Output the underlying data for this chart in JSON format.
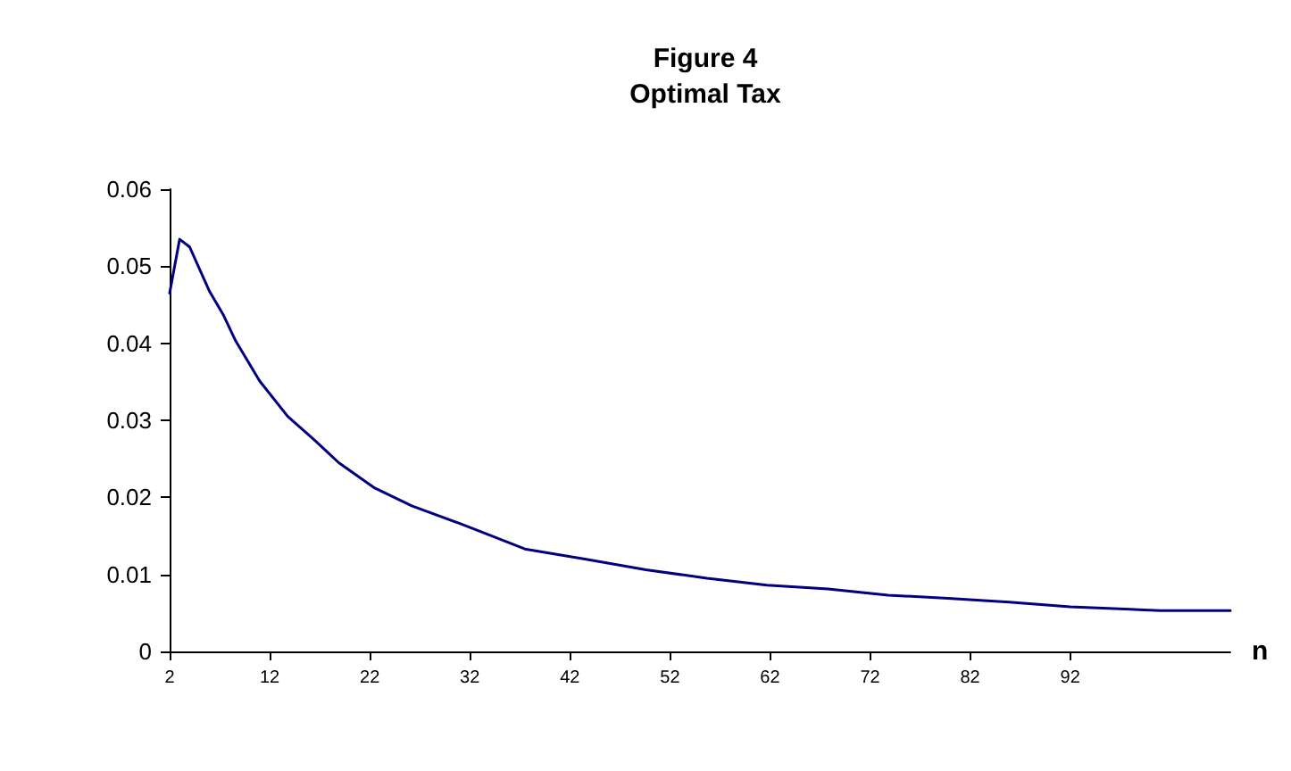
{
  "chart_data": {
    "type": "line",
    "title": "Figure 4\nOptimal Tax",
    "xlabel": "n",
    "x": [
      2,
      3,
      4,
      6,
      7.4,
      8.6,
      11,
      13.8,
      16.5,
      18.9,
      22.5,
      26.2,
      31,
      33.4,
      37.5,
      43.5,
      49.6,
      55.7,
      61.7,
      67.8,
      73.8,
      79.8,
      85.9,
      92,
      101,
      108
    ],
    "series": [
      {
        "color": "#000080",
        "values": [
          0.0465,
          0.0535,
          0.0525,
          0.0467,
          0.0436,
          0.0403,
          0.0351,
          0.0305,
          0.0274,
          0.0245,
          0.0212,
          0.0189,
          0.0166,
          0.0154,
          0.0133,
          0.012,
          0.0106,
          0.0095,
          0.0086,
          0.0081,
          0.0073,
          0.0069,
          0.0064,
          0.0058,
          0.0053,
          0.0053
        ]
      }
    ],
    "xlim": [
      2,
      108
    ],
    "xticks": [
      2,
      12,
      22,
      32,
      42,
      52,
      62,
      72,
      82,
      92
    ],
    "ylim": [
      0,
      0.06
    ],
    "yticks": [
      0,
      0.01,
      0.02,
      0.03,
      0.04,
      0.05,
      0.06
    ],
    "grid": false,
    "marker": "none",
    "line_style": "solid"
  }
}
